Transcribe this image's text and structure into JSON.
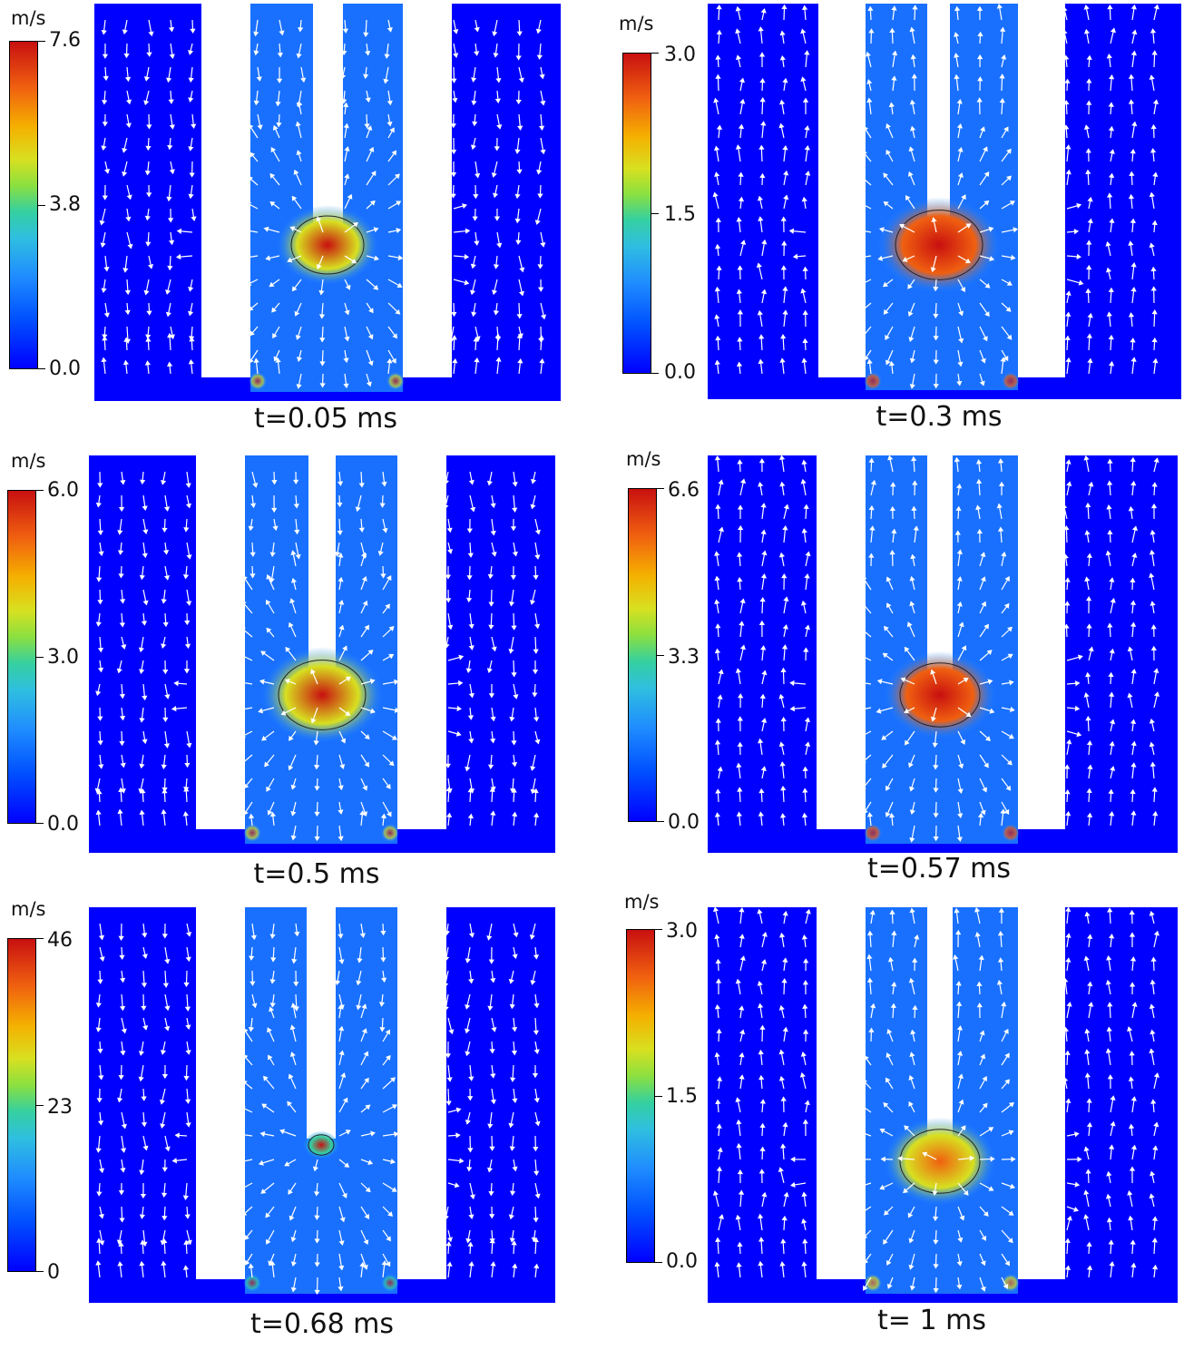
{
  "colormap": [
    "#0000ff",
    "#1f8cff",
    "#35d0a0",
    "#d8e020",
    "#f06010",
    "#c81010"
  ],
  "arrow_color": "#ffffff",
  "panels": [
    {
      "caption": "t=0.05 ms",
      "unit": "m/s",
      "ticks": [
        "7.6",
        "3.8",
        "0.0"
      ]
    },
    {
      "caption": "t=0.3 ms",
      "unit": "m/s",
      "ticks": [
        "3.0",
        "1.5",
        "0.0"
      ]
    },
    {
      "caption": "t=0.5 ms",
      "unit": "m/s",
      "ticks": [
        "6.0",
        "3.0",
        "0.0"
      ]
    },
    {
      "caption": "t=0.57 ms",
      "unit": "m/s",
      "ticks": [
        "6.6",
        "3.3",
        "0.0"
      ]
    },
    {
      "caption": "t=0.68 ms",
      "unit": "m/s",
      "ticks": [
        "46",
        "23",
        "0"
      ]
    },
    {
      "caption": "t= 1 ms",
      "unit": "m/s",
      "ticks": [
        "3.0",
        "1.5",
        "0.0"
      ]
    }
  ]
}
